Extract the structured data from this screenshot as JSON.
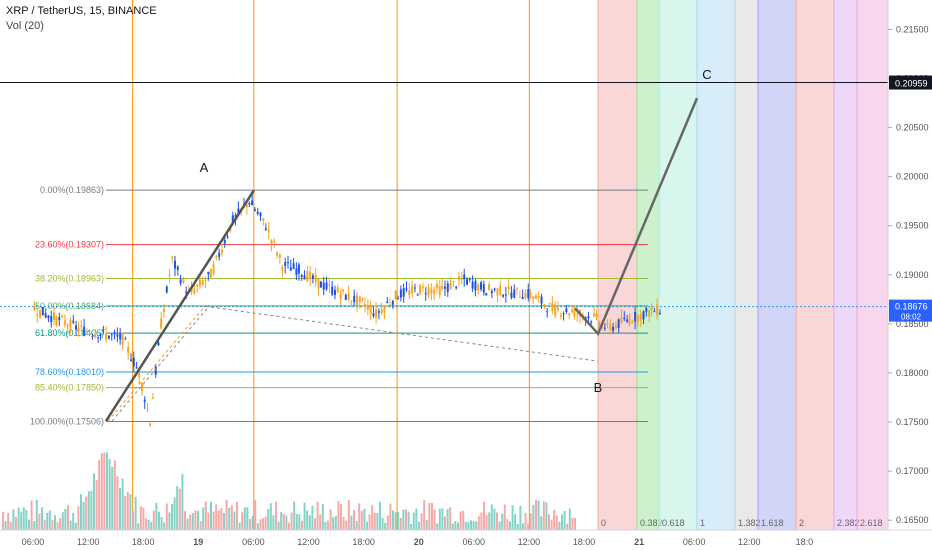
{
  "header": {
    "title": "XRP / TetherUS, 15, BINANCE",
    "volume_label": "Vol (20)"
  },
  "price_axis": {
    "ticks": [
      "0.21500",
      "0.21000",
      "0.20500",
      "0.20000",
      "0.19500",
      "0.19000",
      "0.18500",
      "0.18000",
      "0.17500",
      "0.17000",
      "0.16500"
    ],
    "tick_values": [
      0.215,
      0.21,
      0.205,
      0.2,
      0.195,
      0.19,
      0.185,
      0.18,
      0.175,
      0.17,
      0.165
    ],
    "cursor_price": "0.20959",
    "last_price": "0.18676",
    "countdown": "08:02"
  },
  "time_axis": {
    "ticks": [
      "06:00",
      "12:00",
      "18:00",
      "19",
      "06:00",
      "12:00",
      "18:00",
      "20",
      "06:00",
      "12:00",
      "18:00",
      "21",
      "06:00",
      "12:00",
      "18:0"
    ]
  },
  "fib_retracement": {
    "levels": [
      {
        "label": "0.00%(0.19863)",
        "price": 0.19863,
        "color": "#787b86"
      },
      {
        "label": "23.60%(0.19307)",
        "price": 0.19307,
        "color": "#f23645"
      },
      {
        "label": "38.20%(0.18963)",
        "price": 0.18963,
        "color": "#9bbd32"
      },
      {
        "label": "50.00%(0.18684)",
        "price": 0.18684,
        "color": "#4caf50"
      },
      {
        "label": "61.80%(0.18406)",
        "price": 0.18406,
        "color": "#089981"
      },
      {
        "label": "78.60%(0.18010)",
        "price": 0.1801,
        "color": "#2196f3"
      },
      {
        "label": "85.40%(0.17850)",
        "price": 0.1785,
        "color": "#9bbd32"
      },
      {
        "label": "100.00%(0.17506)",
        "price": 0.17506,
        "color": "#787b86"
      }
    ]
  },
  "fib_time_zones": {
    "labels": [
      "0",
      "0.382",
      "0.618",
      "1",
      "1.382",
      "1.618",
      "2",
      "2.382",
      "2.618"
    ],
    "colors": [
      "#f4a6a6",
      "#8ee08e",
      "#a8ecd7",
      "#a7d8f5",
      "#cfcfcf",
      "#9ea2f0",
      "#f4a6a6",
      "#d9a6f0",
      "#f0a6d9"
    ]
  },
  "wave_labels": {
    "a": "A",
    "b": "B",
    "c": "C"
  },
  "chart_data": {
    "type": "candlestick",
    "title": "XRP / TetherUS, 15, BINANCE",
    "xlabel": "",
    "ylabel": "",
    "ylim": [
      0.164,
      0.218
    ],
    "price_path": [
      {
        "t": "18 Jan 03:00",
        "p": 0.1865
      },
      {
        "t": "18 Jan 05:00",
        "p": 0.1855
      },
      {
        "t": "18 Jan 07:00",
        "p": 0.1845
      },
      {
        "t": "18 Jan 09:00",
        "p": 0.184
      },
      {
        "t": "18 Jan 11:00",
        "p": 0.1835
      },
      {
        "t": "18 Jan 12:30",
        "p": 0.18
      },
      {
        "t": "18 Jan 13:30",
        "p": 0.1751
      },
      {
        "t": "18 Jan 14:30",
        "p": 0.185
      },
      {
        "t": "18 Jan 15:30",
        "p": 0.1915
      },
      {
        "t": "18 Jan 17:00",
        "p": 0.188
      },
      {
        "t": "18 Jan 19:00",
        "p": 0.19
      },
      {
        "t": "18 Jan 21:00",
        "p": 0.1955
      },
      {
        "t": "18 Jan 22:30",
        "p": 0.1975
      },
      {
        "t": "19 Jan 00:00",
        "p": 0.195
      },
      {
        "t": "19 Jan 01:30",
        "p": 0.191
      },
      {
        "t": "19 Jan 03:00",
        "p": 0.1905
      },
      {
        "t": "19 Jan 05:00",
        "p": 0.189
      },
      {
        "t": "19 Jan 07:00",
        "p": 0.188
      },
      {
        "t": "19 Jan 09:00",
        "p": 0.187
      },
      {
        "t": "19 Jan 10:00",
        "p": 0.186
      },
      {
        "t": "19 Jan 12:00",
        "p": 0.188
      },
      {
        "t": "19 Jan 14:00",
        "p": 0.1885
      },
      {
        "t": "19 Jan 16:00",
        "p": 0.1885
      },
      {
        "t": "19 Jan 18:00",
        "p": 0.1895
      },
      {
        "t": "19 Jan 20:00",
        "p": 0.1885
      },
      {
        "t": "20 Jan 00:00",
        "p": 0.188
      },
      {
        "t": "20 Jan 02:00",
        "p": 0.1865
      },
      {
        "t": "20 Jan 04:00",
        "p": 0.1862
      },
      {
        "t": "20 Jan 06:00",
        "p": 0.1855
      },
      {
        "t": "20 Jan 07:00",
        "p": 0.1845
      },
      {
        "t": "20 Jan 09:00",
        "p": 0.1855
      },
      {
        "t": "20 Jan 11:00",
        "p": 0.1863
      },
      {
        "t": "20 Jan 12:00",
        "p": 0.1865
      }
    ],
    "volume": {
      "max_spike_time": "18 Jan 13:30"
    },
    "vertical_markers": [
      "18 Jan 12:00",
      "18 Jan 23:00",
      "19 Jan 12:00",
      "20 Jan 00:00"
    ],
    "elliott_projection": [
      {
        "label": "A",
        "t": "18 Jan 23:00",
        "p": 0.1986
      },
      {
        "label": "B",
        "t": "20 Jan 13:00",
        "p": 0.184
      },
      {
        "label": "C",
        "t": "21 Jan 00:00",
        "p": 0.208
      }
    ]
  }
}
